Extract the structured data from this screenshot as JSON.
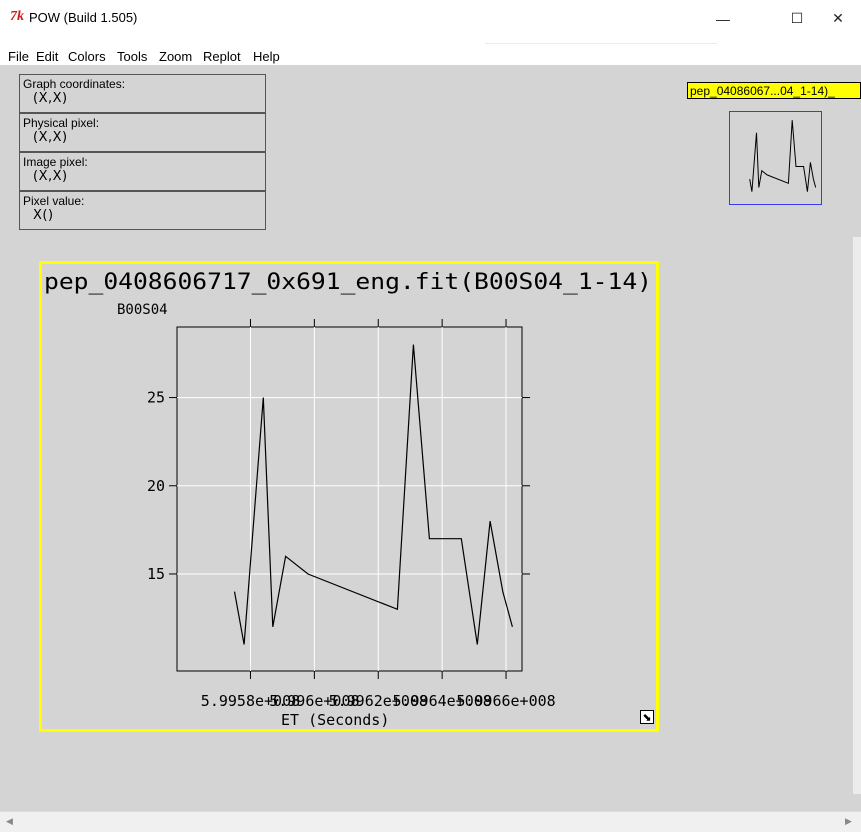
{
  "window": {
    "title": "POW (Build 1.505)",
    "logo_text": "7k",
    "minimize": "—",
    "maximize": "☐",
    "close": "✕"
  },
  "menu": [
    "File",
    "Edit",
    "Colors",
    "Tools",
    "Zoom",
    "Replot",
    "Help"
  ],
  "info_panels": [
    {
      "label": "Graph coordinates:",
      "value": "(X,X)"
    },
    {
      "label": "Physical pixel:",
      "value": "(X,X)"
    },
    {
      "label": "Image pixel:",
      "value": "(X,X)"
    },
    {
      "label": "Pixel value:",
      "value": "X()"
    }
  ],
  "thumbnail": {
    "label": "pep_04086067...04_1-14)_"
  },
  "colors": {
    "graph_border": "#ffff00",
    "thumbnail_border": "#3a3af0",
    "plot_line": "#000000",
    "background": "#d4d4d4"
  },
  "chart_data": {
    "type": "line",
    "title": "pep_0408606717_0x691_eng.fit(B00S04_1-14)",
    "ylabel": "B00S04",
    "xlabel": "ET (Seconds)",
    "x_tick_labels": [
      "5.9958e+008",
      "5.996e+008",
      "5.9962e+008",
      "5.9964e+008",
      "5.9966e+008"
    ],
    "x_tick_label_text": "5.9958e+\u0000",
    "x_ticks": [
      599580000,
      599600000,
      599620000,
      599640000,
      599660000
    ],
    "y_ticks": [
      15,
      20,
      25
    ],
    "xlim": [
      599557000,
      599665000
    ],
    "ylim": [
      9.5,
      29
    ],
    "grid": true,
    "series": [
      {
        "x": [
          599575000,
          599578000,
          599584000,
          599587000,
          599591000,
          599598000,
          599626000,
          599631000,
          599636000,
          599646000,
          599651000,
          599655000,
          599659000,
          599662000
        ],
        "y": [
          14,
          11,
          25,
          12,
          16,
          15,
          13,
          28,
          17,
          17,
          11,
          18,
          14,
          12
        ]
      }
    ]
  }
}
